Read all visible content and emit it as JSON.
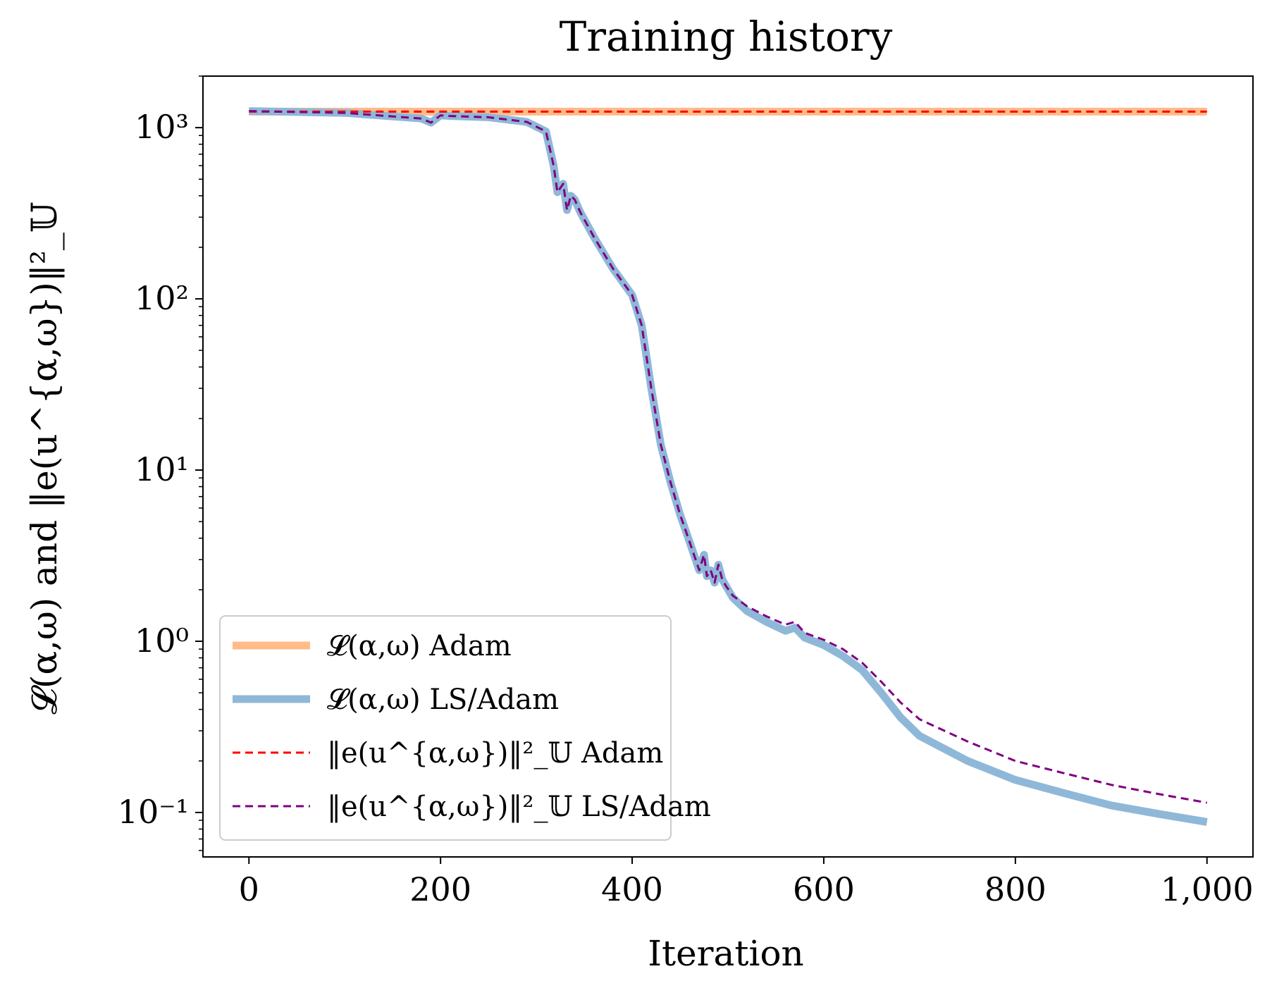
{
  "chart_data": {
    "type": "line",
    "title": "Training history",
    "xlabel": "Iteration",
    "ylabel": "𝓛(α,ω)   and   ‖e(u^{α,ω})‖²_𝕌",
    "xlim": [
      -48,
      1048
    ],
    "ylim": [
      0.055,
      2000
    ],
    "yscale": "log",
    "grid": false,
    "legend_position": "lower-left",
    "x_ticks": [
      {
        "value": 0,
        "label": "0"
      },
      {
        "value": 200,
        "label": "200"
      },
      {
        "value": 400,
        "label": "400"
      },
      {
        "value": 600,
        "label": "600"
      },
      {
        "value": 800,
        "label": "800"
      },
      {
        "value": 1000,
        "label": "1,000"
      }
    ],
    "y_ticks": [
      {
        "value": 0.1,
        "label": "10⁻¹"
      },
      {
        "value": 1,
        "label": "10⁰"
      },
      {
        "value": 10,
        "label": "10¹"
      },
      {
        "value": 100,
        "label": "10²"
      },
      {
        "value": 1000,
        "label": "10³"
      }
    ],
    "series": [
      {
        "name": "𝓛(α,ω) Adam",
        "color": "#ffbb88",
        "style": "solid-thick",
        "x": [
          0,
          1000
        ],
        "y": [
          1240,
          1240
        ]
      },
      {
        "name": "𝓛(α,ω) LS/Adam",
        "color": "#8fb8d8",
        "style": "solid-thick",
        "x": [
          0,
          100,
          180,
          190,
          200,
          210,
          250,
          290,
          310,
          318,
          322,
          328,
          332,
          336,
          340,
          346,
          360,
          380,
          400,
          410,
          420,
          430,
          440,
          450,
          460,
          470,
          475,
          478,
          482,
          486,
          490,
          494,
          498,
          505,
          520,
          540,
          560,
          570,
          580,
          600,
          620,
          640,
          660,
          680,
          700,
          750,
          800,
          850,
          900,
          950,
          1000
        ],
        "y": [
          1250,
          1220,
          1130,
          1070,
          1180,
          1170,
          1150,
          1080,
          950,
          600,
          420,
          470,
          330,
          400,
          380,
          320,
          230,
          150,
          105,
          70,
          30,
          14,
          8.5,
          5.5,
          3.8,
          2.6,
          3.2,
          2.4,
          2.6,
          2.2,
          2.8,
          2.3,
          2.1,
          1.8,
          1.5,
          1.3,
          1.15,
          1.2,
          1.05,
          0.95,
          0.82,
          0.68,
          0.5,
          0.36,
          0.28,
          0.2,
          0.155,
          0.13,
          0.11,
          0.098,
          0.088
        ]
      },
      {
        "name": "‖e(u^{α,ω})‖²_𝕌 Adam",
        "color": "#ff0000",
        "style": "dashed",
        "x": [
          0,
          1000
        ],
        "y": [
          1240,
          1240
        ]
      },
      {
        "name": "‖e(u^{α,ω})‖²_𝕌 LS/Adam",
        "color": "#800080",
        "style": "dashed",
        "x": [
          0,
          100,
          180,
          190,
          200,
          210,
          250,
          290,
          310,
          318,
          322,
          328,
          332,
          336,
          340,
          346,
          360,
          380,
          400,
          410,
          420,
          430,
          440,
          450,
          460,
          470,
          475,
          478,
          482,
          486,
          490,
          494,
          498,
          505,
          520,
          540,
          560,
          570,
          580,
          600,
          620,
          640,
          660,
          680,
          700,
          750,
          800,
          850,
          900,
          950,
          1000
        ],
        "y": [
          1250,
          1220,
          1130,
          1070,
          1180,
          1170,
          1150,
          1080,
          950,
          600,
          420,
          470,
          330,
          400,
          380,
          320,
          230,
          150,
          105,
          70,
          30,
          14,
          8.5,
          5.5,
          3.8,
          2.6,
          3.2,
          2.4,
          2.6,
          2.2,
          2.8,
          2.3,
          2.1,
          1.85,
          1.6,
          1.4,
          1.25,
          1.3,
          1.12,
          1.02,
          0.9,
          0.75,
          0.58,
          0.44,
          0.35,
          0.26,
          0.2,
          0.17,
          0.145,
          0.128,
          0.114
        ]
      }
    ]
  }
}
